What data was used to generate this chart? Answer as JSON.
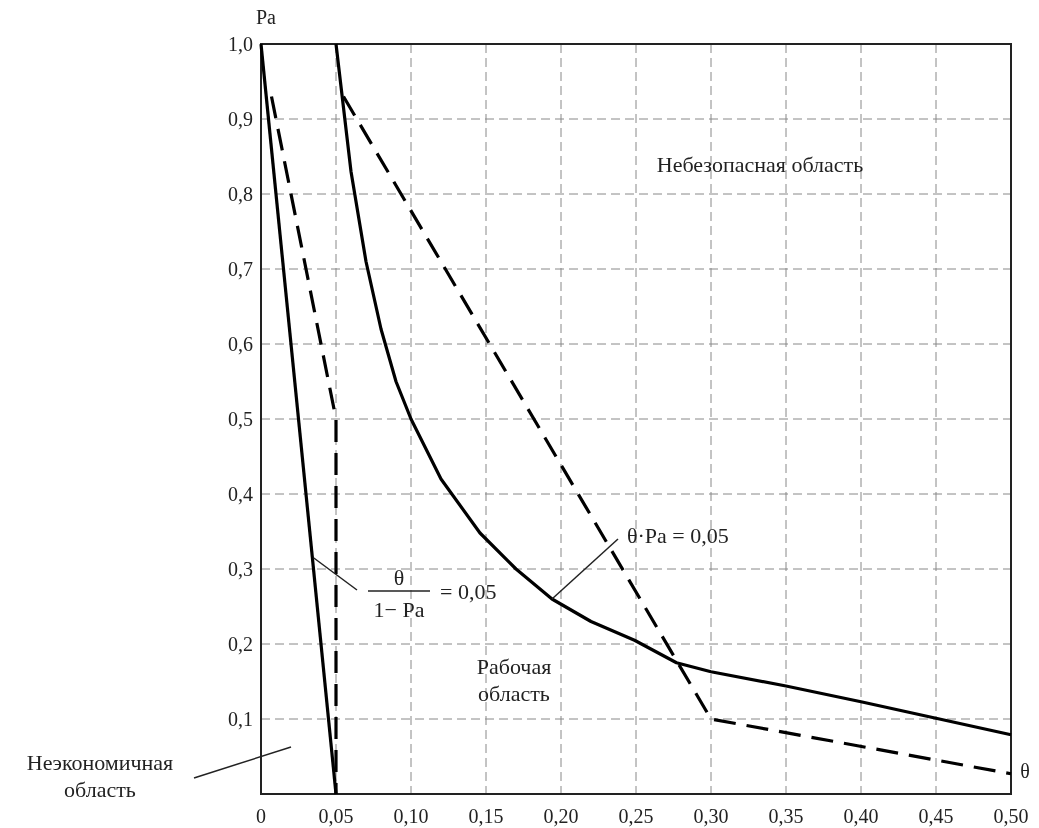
{
  "chart_data": {
    "type": "line",
    "xlabel": "θ",
    "ylabel": "Pa",
    "xlim": [
      0,
      0.5
    ],
    "ylim": [
      0,
      1
    ],
    "xticks": [
      0,
      {
        "value": 0.05,
        "label": "0,05"
      },
      {
        "value": 0.1,
        "label": "0,10"
      },
      {
        "value": 0.15,
        "label": "0,15"
      },
      {
        "value": 0.2,
        "label": "0,20"
      },
      {
        "value": 0.25,
        "label": "0,25"
      },
      {
        "value": 0.3,
        "label": "0,30"
      },
      {
        "value": 0.35,
        "label": "0,35"
      },
      {
        "value": 0.4,
        "label": "0,40"
      },
      {
        "value": 0.45,
        "label": "0,45"
      },
      {
        "value": 0.5,
        "label": "0,50"
      }
    ],
    "yticks": [
      {
        "value": 0,
        "label": null
      },
      {
        "value": 0.1,
        "label": "0,1"
      },
      {
        "value": 0.2,
        "label": "0,2"
      },
      {
        "value": 0.3,
        "label": "0,3"
      },
      {
        "value": 0.4,
        "label": "0,4"
      },
      {
        "value": 0.5,
        "label": "0,5"
      },
      {
        "value": 0.6,
        "label": "0,6"
      },
      {
        "value": 0.7,
        "label": "0,7"
      },
      {
        "value": 0.8,
        "label": "0,8"
      },
      {
        "value": 0.9,
        "label": "0,9"
      },
      {
        "value": 1,
        "label": "1,0"
      }
    ],
    "grid": true,
    "marker": "none",
    "series": [
      {
        "color": "#000000",
        "line_style": "solid",
        "x": [
          0,
          0.05
        ],
        "values": [
          1,
          0
        ]
      },
      {
        "color": "#000000",
        "line_style": "dashed",
        "x": [
          0.007,
          0.05,
          0.05
        ],
        "values": [
          0.93,
          0.5,
          0
        ]
      },
      {
        "color": "#000000",
        "line_style": "solid",
        "x": [
          0.05,
          0.06,
          0.07,
          0.08,
          0.09,
          0.1,
          0.12,
          0.146,
          0.17,
          0.194,
          0.22,
          0.249,
          0.277,
          0.3,
          0.35,
          0.4,
          0.45,
          0.5
        ],
        "values": [
          1,
          0.83,
          0.71,
          0.62,
          0.55,
          0.5,
          0.42,
          0.348,
          0.3,
          0.26,
          0.23,
          0.205,
          0.175,
          0.163,
          0.144,
          0.123,
          0.101,
          0.079
        ]
      },
      {
        "color": "#000000",
        "line_style": "dashed",
        "x": [
          0.055,
          0.3,
          0.5
        ],
        "values": [
          0.93,
          0.1,
          0.027
        ]
      }
    ],
    "annotations": [
      "Небезопасная область",
      "Рабочая\nобласть",
      "Неэкономичная\nобласть",
      "θ",
      {
        "text": "1− Pa",
        "x": 0.035,
        "y": 0.315
      },
      "= 0,05",
      {
        "text": "θ·Pa = 0,05",
        "x": 0.194,
        "y": 0.26
      }
    ]
  }
}
